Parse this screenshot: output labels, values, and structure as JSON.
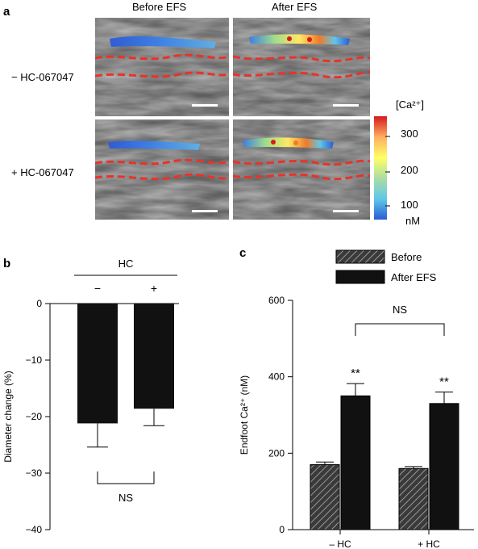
{
  "panel_a": {
    "letter": "a",
    "col_labels": [
      "Before EFS",
      "After EFS"
    ],
    "row_labels": [
      "− HC-067047",
      "+ HC-067047"
    ],
    "colorbar": {
      "title": "[Ca²⁺]",
      "ticks": [
        "300",
        "200",
        "100"
      ],
      "unit": "nM",
      "colors": [
        "#d7191c",
        "#fdae61",
        "#ffff66",
        "#abdda4",
        "#5ec8e8",
        "#2b5bd7"
      ]
    }
  },
  "panel_b": {
    "letter": "b",
    "group_label": "HC",
    "signs": [
      "−",
      "+"
    ],
    "sig_label": "NS",
    "chart_data": {
      "type": "bar",
      "categories": [
        "−",
        "+"
      ],
      "values": [
        -21.2,
        -18.6
      ],
      "errors": [
        4.2,
        3.0
      ],
      "ylabel": "Diameter change (%)",
      "ylim": [
        -40,
        0
      ],
      "yticks": [
        0,
        -10,
        -20,
        -30,
        -40
      ],
      "ytick_labels": [
        "0",
        "−10",
        "−20",
        "−30",
        "−40"
      ],
      "bar_color": "#111111"
    }
  },
  "panel_c": {
    "letter": "c",
    "sig_label": "NS",
    "stars": [
      "**",
      "**"
    ],
    "chart_data": {
      "type": "bar",
      "categories": [
        "– HC",
        "+ HC"
      ],
      "series": [
        {
          "name": "Before",
          "values": [
            170,
            160
          ],
          "errors": [
            7,
            5
          ],
          "pattern": "hatched"
        },
        {
          "name": "After EFS",
          "values": [
            350,
            330
          ],
          "errors": [
            32,
            30
          ],
          "color": "#111111"
        }
      ],
      "ylabel": "Endfoot Ca²⁺ (nM)",
      "ylim": [
        0,
        600
      ],
      "yticks": [
        0,
        200,
        400,
        600
      ],
      "ytick_labels": [
        "0",
        "200",
        "400",
        "600"
      ],
      "legend_placement": "top"
    }
  }
}
